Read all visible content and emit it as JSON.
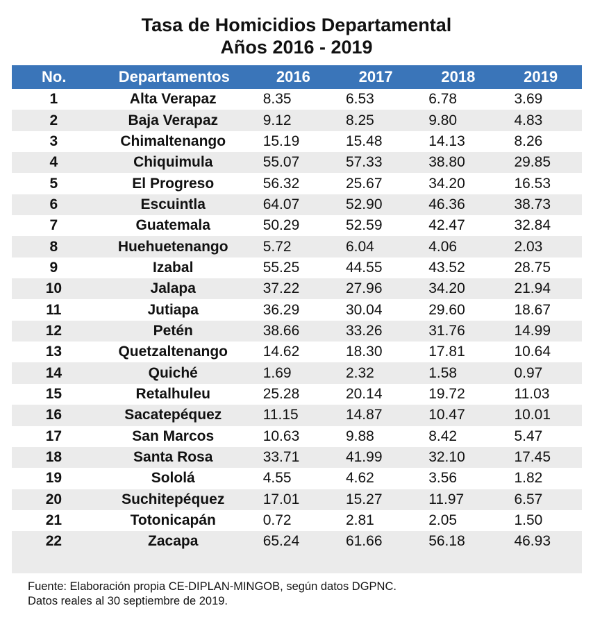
{
  "title": {
    "line1": "Tasa de Homicidios Departamental",
    "line2": "Años 2016 - 2019"
  },
  "table": {
    "headers": [
      "No.",
      "Departamentos",
      "2016",
      "2017",
      "2018",
      "2019"
    ],
    "rows": [
      [
        "1",
        "Alta Verapaz",
        "8.35",
        "6.53",
        "6.78",
        "3.69"
      ],
      [
        "2",
        "Baja Verapaz",
        "9.12",
        "8.25",
        "9.80",
        "4.83"
      ],
      [
        "3",
        "Chimaltenango",
        "15.19",
        "15.48",
        "14.13",
        "8.26"
      ],
      [
        "4",
        "Chiquimula",
        "55.07",
        "57.33",
        "38.80",
        "29.85"
      ],
      [
        "5",
        "El Progreso",
        "56.32",
        "25.67",
        "34.20",
        "16.53"
      ],
      [
        "6",
        "Escuintla",
        "64.07",
        "52.90",
        "46.36",
        "38.73"
      ],
      [
        "7",
        "Guatemala",
        "50.29",
        "52.59",
        "42.47",
        "32.84"
      ],
      [
        "8",
        "Huehuetenango",
        "5.72",
        "6.04",
        "4.06",
        "2.03"
      ],
      [
        "9",
        "Izabal",
        "55.25",
        "44.55",
        "43.52",
        "28.75"
      ],
      [
        "10",
        "Jalapa",
        "37.22",
        "27.96",
        "34.20",
        "21.94"
      ],
      [
        "11",
        "Jutiapa",
        "36.29",
        "30.04",
        "29.60",
        "18.67"
      ],
      [
        "12",
        "Petén",
        "38.66",
        "33.26",
        "31.76",
        "14.99"
      ],
      [
        "13",
        "Quetzaltenango",
        "14.62",
        "18.30",
        "17.81",
        "10.64"
      ],
      [
        "14",
        "Quiché",
        "1.69",
        "2.32",
        "1.58",
        "0.97"
      ],
      [
        "15",
        "Retalhuleu",
        "25.28",
        "20.14",
        "19.72",
        "11.03"
      ],
      [
        "16",
        "Sacatepéquez",
        "11.15",
        "14.87",
        "10.47",
        "10.01"
      ],
      [
        "17",
        "San Marcos",
        "10.63",
        "9.88",
        "8.42",
        "5.47"
      ],
      [
        "18",
        "Santa Rosa",
        "33.71",
        "41.99",
        "32.10",
        "17.45"
      ],
      [
        "19",
        "Sololá",
        "4.55",
        "4.62",
        "3.56",
        "1.82"
      ],
      [
        "20",
        "Suchitepéquez",
        "17.01",
        "15.27",
        "11.97",
        "6.57"
      ],
      [
        "21",
        "Totonicapán",
        "0.72",
        "2.81",
        "2.05",
        "1.50"
      ],
      [
        "22",
        "Zacapa",
        "65.24",
        "61.66",
        "56.18",
        "46.93"
      ]
    ]
  },
  "footer": {
    "line1": "Fuente: Elaboración propia CE-DIPLAN-MINGOB, según datos DGPNC.",
    "line2": "Datos reales al 30 septiembre de 2019."
  },
  "colors": {
    "header_bg": "#3a75b9",
    "stripe_bg": "#ebebeb"
  }
}
